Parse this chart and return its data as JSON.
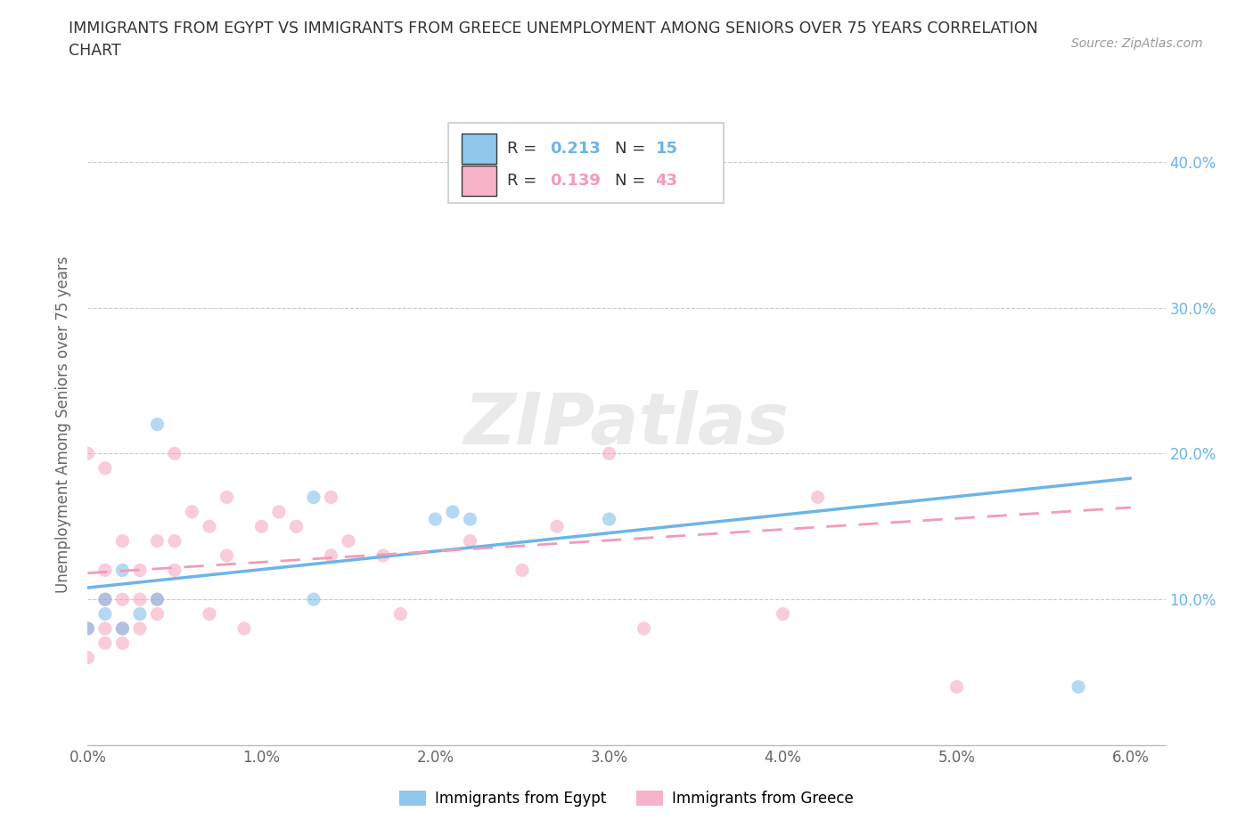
{
  "title": "IMMIGRANTS FROM EGYPT VS IMMIGRANTS FROM GREECE UNEMPLOYMENT AMONG SENIORS OVER 75 YEARS CORRELATION\nCHART",
  "source": "Source: ZipAtlas.com",
  "ylabel": "Unemployment Among Seniors over 75 years",
  "xlim": [
    0.0,
    0.062
  ],
  "ylim": [
    0.0,
    0.44
  ],
  "xticks": [
    0.0,
    0.01,
    0.02,
    0.03,
    0.04,
    0.05,
    0.06
  ],
  "xticklabels": [
    "0.0%",
    "1.0%",
    "2.0%",
    "3.0%",
    "4.0%",
    "5.0%",
    "6.0%"
  ],
  "yticks": [
    0.0,
    0.1,
    0.2,
    0.3,
    0.4
  ],
  "yticklabels_right": [
    "",
    "10.0%",
    "20.0%",
    "30.0%",
    "40.0%"
  ],
  "egypt_color": "#6cb4e8",
  "greece_color": "#f59ab5",
  "egypt_R": "0.213",
  "egypt_N": "15",
  "greece_R": "0.139",
  "greece_N": "43",
  "watermark": "ZIPatlas",
  "egypt_scatter_x": [
    0.0,
    0.001,
    0.001,
    0.002,
    0.002,
    0.003,
    0.004,
    0.004,
    0.013,
    0.013,
    0.02,
    0.021,
    0.022,
    0.03,
    0.057
  ],
  "egypt_scatter_y": [
    0.08,
    0.09,
    0.1,
    0.08,
    0.12,
    0.09,
    0.1,
    0.22,
    0.17,
    0.1,
    0.155,
    0.16,
    0.155,
    0.155,
    0.04
  ],
  "greece_scatter_x": [
    0.0,
    0.0,
    0.0,
    0.001,
    0.001,
    0.001,
    0.001,
    0.001,
    0.002,
    0.002,
    0.002,
    0.002,
    0.003,
    0.003,
    0.003,
    0.004,
    0.004,
    0.004,
    0.005,
    0.005,
    0.005,
    0.006,
    0.007,
    0.007,
    0.008,
    0.008,
    0.009,
    0.01,
    0.011,
    0.012,
    0.014,
    0.014,
    0.015,
    0.017,
    0.018,
    0.022,
    0.025,
    0.027,
    0.03,
    0.032,
    0.04,
    0.042,
    0.05
  ],
  "greece_scatter_y": [
    0.06,
    0.08,
    0.2,
    0.07,
    0.08,
    0.1,
    0.12,
    0.19,
    0.07,
    0.08,
    0.1,
    0.14,
    0.08,
    0.1,
    0.12,
    0.09,
    0.1,
    0.14,
    0.12,
    0.14,
    0.2,
    0.16,
    0.09,
    0.15,
    0.13,
    0.17,
    0.08,
    0.15,
    0.16,
    0.15,
    0.13,
    0.17,
    0.14,
    0.13,
    0.09,
    0.14,
    0.12,
    0.15,
    0.2,
    0.08,
    0.09,
    0.17,
    0.04
  ],
  "egypt_trendline_x": [
    0.0,
    0.06
  ],
  "egypt_trendline_y": [
    0.108,
    0.183
  ],
  "greece_trendline_x": [
    0.0,
    0.06
  ],
  "greece_trendline_y": [
    0.118,
    0.163
  ],
  "background_color": "#ffffff",
  "grid_color": "#cccccc",
  "title_color": "#333333",
  "tick_color": "#666666",
  "marker_size": 120,
  "marker_alpha": 0.5
}
